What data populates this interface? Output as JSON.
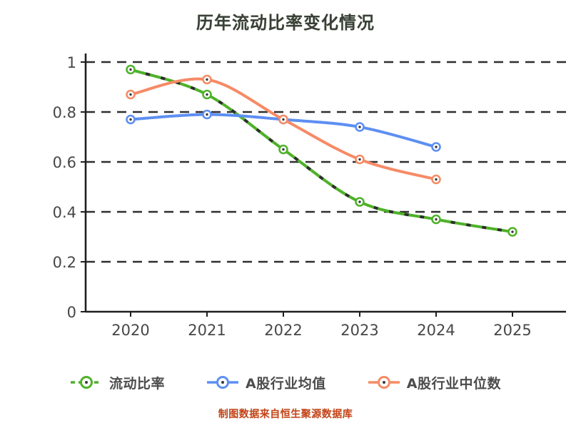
{
  "chart_data": {
    "type": "line",
    "title": "历年流动比率变化情况",
    "footer": "制图数据来自恒生聚源数据库",
    "categories": [
      "2020",
      "2021",
      "2022",
      "2023",
      "2024",
      "2025"
    ],
    "yticks": [
      0,
      0.2,
      0.4,
      0.6,
      0.8,
      1
    ],
    "ytick_labels": [
      "0",
      "0.2",
      "0.4",
      "0.6",
      "0.8",
      "1"
    ],
    "ylim": [
      0,
      1
    ],
    "xlabel": "",
    "ylabel": "",
    "grid": "horizontal-dashed",
    "legend_position": "bottom",
    "series": [
      {
        "name": "流动比率",
        "color": "#4fb229",
        "style": "dashed",
        "marker": "circle",
        "values": [
          0.97,
          0.87,
          0.65,
          0.44,
          0.37,
          0.32
        ]
      },
      {
        "name": "A股行业均值",
        "color": "#5d8ff2",
        "style": "solid",
        "marker": "circle",
        "values": [
          0.77,
          0.79,
          0.77,
          0.74,
          0.66,
          null
        ]
      },
      {
        "name": "A股行业中位数",
        "color": "#f58b66",
        "style": "solid",
        "marker": "circle",
        "values": [
          0.87,
          0.93,
          0.77,
          0.61,
          0.53,
          null
        ]
      }
    ],
    "colors": {
      "axis": "#1e1e1e",
      "grid": "#2e2e2e",
      "tick_label": "#474747",
      "marker_center": "#3a3a3a",
      "footer_text": "#c8441c"
    }
  }
}
